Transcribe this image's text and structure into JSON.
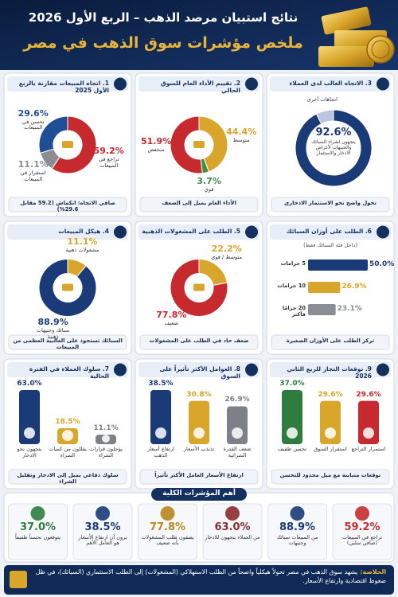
{
  "header": {
    "title": "نتائج استبيان مرصد الذهب – الربع الأول 2026",
    "subtitle": "ملخص مؤشرات سوق الذهب في مصر"
  },
  "chart_data": [
    {
      "type": "donut",
      "title": "1. اتجاه المبيعات مقارنة بالربع الأول 2025",
      "categories": [
        "تراجع في المبيعات",
        "استقرار في المبيعات",
        "تحسن في المبيعات"
      ],
      "values": [
        59.2,
        11.1,
        29.6
      ],
      "value_labels": [
        "59.2%",
        "11.1%",
        "29.6%"
      ],
      "colors": [
        "#c62a2f",
        "#8a8d93",
        "#1f4e96"
      ],
      "footer": "صافي الاتجاه: انكماش (59.2 مقابل 29.6%)"
    },
    {
      "type": "donut",
      "title": "2. تقييم الأداء العام للسوق الحالي",
      "categories": [
        "متوسط",
        "قوي",
        "منخفض"
      ],
      "values": [
        44.4,
        3.7,
        51.9
      ],
      "value_labels": [
        "44.4%",
        "3.7%",
        "51.9%"
      ],
      "colors": [
        "#d9a52a",
        "#3f8f47",
        "#c62a2f"
      ],
      "footer": "الأداء العام يميل إلى الضعف"
    },
    {
      "type": "ring",
      "title": "3. الاتجاه الغالب لدى العملاء",
      "categories": [
        "يتجهون لشراء السبائك والجنيهات لأغراض الادخار والاستثمار",
        "اتجاهات أخرى"
      ],
      "values": [
        92.6,
        7.4
      ],
      "value_labels": [
        "92.6%",
        null
      ],
      "colors": [
        "#1a3a78",
        "#b9c6dd"
      ],
      "footer": "تحول واضح نحو الاستثمار الادخاري"
    },
    {
      "type": "donut",
      "title": "4. هيكل المبيعات",
      "categories": [
        "مشغولات ذهبية",
        "سبائك وجنيهات ذهبية"
      ],
      "values": [
        11.1,
        88.9
      ],
      "value_labels": [
        "11.1%",
        "88.9%"
      ],
      "colors": [
        "#d9a52a",
        "#1a3a78"
      ],
      "footer": "السبائك تستحوذ على الغالبية العظمى من المبيعات"
    },
    {
      "type": "donut",
      "title": "5. الطلب على المشغولات الذهبية",
      "categories": [
        "متوسط / قوي",
        "ضعيف"
      ],
      "values": [
        22.2,
        77.8
      ],
      "value_labels": [
        "22.2%",
        "77.8%"
      ],
      "colors": [
        "#d9a52a",
        "#c62a2f"
      ],
      "footer": "ضعف حاد في الطلب على المشغولات"
    },
    {
      "type": "hbar",
      "title": "6. الطلب على أوزان السبائك",
      "subtitle": "(داخل فئة السبائك فقط)",
      "categories": [
        "5 جرامات",
        "10 جرامات",
        "20 جرامًا فأكثر"
      ],
      "values": [
        50.0,
        26.9,
        23.1
      ],
      "value_labels": [
        "50.0%",
        "26.9%",
        "23.1%"
      ],
      "colors": [
        "#1a3a78",
        "#d9a52a",
        "#8a8d93"
      ],
      "footer": "تركز الطلب على الأوزان الصغيرة"
    },
    {
      "type": "vbar",
      "title": "7. سلوك العملاء في الفترة الحالية",
      "categories": [
        "يتجهون نحو الادخار",
        "يقللون من كميات الشراء",
        "يؤجلون قرارات الشراء"
      ],
      "values": [
        63.0,
        18.5,
        11.1
      ],
      "value_labels": [
        "63.0%",
        "18.5%",
        "11.1%"
      ],
      "colors": [
        "#1a3a78",
        "#d9a52a",
        "#7d8087"
      ],
      "footer": "سلوك دفاعي يميل إلى الادخار وتقليل الشراء"
    },
    {
      "type": "vbar",
      "title": "8. العوامل الأكثر تأثيراً على السوق",
      "categories": [
        "ارتفاع أسعار الذهب",
        "تذبذب الأسعار",
        "ضعف القدرة الشرائية"
      ],
      "values": [
        38.5,
        30.8,
        26.9
      ],
      "value_labels": [
        "38.5%",
        "30.8%",
        "26.9%"
      ],
      "colors": [
        "#1a3a78",
        "#d9a52a",
        "#7d8087"
      ],
      "footer": "ارتفاع الأسعار العامل الأكثر تأثيراً"
    },
    {
      "type": "vbar",
      "title": "9. توقعات التجار للربع الثاني 2026",
      "categories": [
        "تحسن طفيف",
        "استقرار السوق",
        "استمرار التراجع"
      ],
      "values": [
        37.0,
        29.6,
        29.6
      ],
      "value_labels": [
        "37.0%",
        "29.6%",
        "29.6%"
      ],
      "colors": [
        "#2e7d3e",
        "#d9a52a",
        "#c62a2f"
      ],
      "footer": "توقعات متباينة مع ميل محدود للتحسن"
    }
  ],
  "key_indicators": {
    "title": "أهم المؤشرات الكلية",
    "items": [
      {
        "value": "59.2%",
        "label": "تراجع في المبيعات (صافي سلبي)",
        "color": "#c62a2f"
      },
      {
        "value": "88.9%",
        "label": "من المبيعات سبائك وجنيهات",
        "color": "#1a3a78"
      },
      {
        "value": "63.0%",
        "label": "من العملاء يتجهون للادخار",
        "color": "#8e2a2a"
      },
      {
        "value": "77.8%",
        "label": "يصفون طلب المشغولات بأنه ضعيف",
        "color": "#b8861c"
      },
      {
        "value": "38.5%",
        "label": "يرون أن ارتفاع الأسعار هو العامل الأهم",
        "color": "#1a3a78"
      },
      {
        "value": "37.0%",
        "label": "يتوقعون تحسناً طفيفاً",
        "color": "#2e7d3e"
      }
    ]
  },
  "conclusion": {
    "label": "الخلاصة:",
    "text": "يشهد سوق الذهب في مصر تحولاً هيكلياً واضحاً من الطلب الاستهلاكي (المشغولات) إلى الطلب الاستثماري (السبائك)، في ظل ضغوط اقتصادية وارتفاع الأسعار."
  }
}
